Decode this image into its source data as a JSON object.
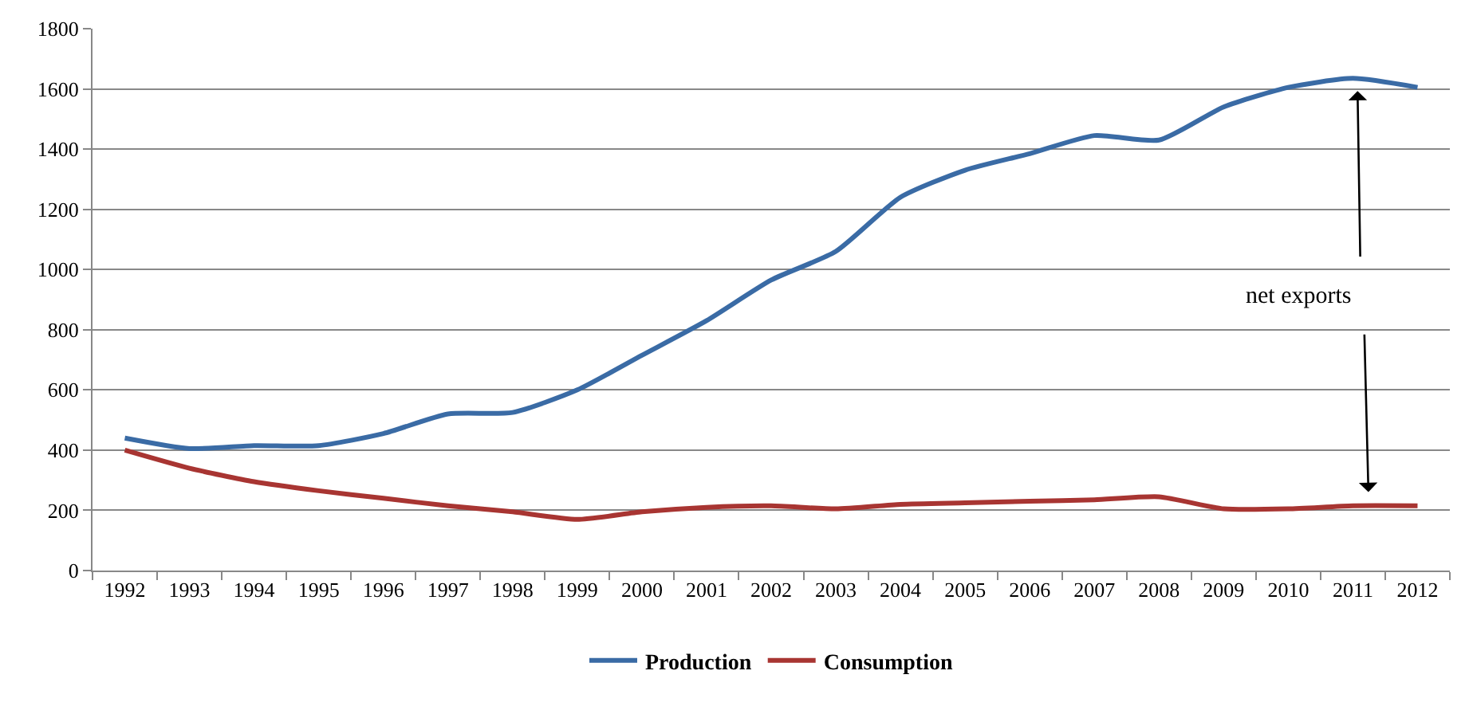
{
  "chart_data": {
    "type": "line",
    "categories": [
      "1992",
      "1993",
      "1994",
      "1995",
      "1996",
      "1997",
      "1998",
      "1999",
      "2000",
      "2001",
      "2002",
      "2003",
      "2004",
      "2005",
      "2006",
      "2007",
      "2008",
      "2009",
      "2010",
      "2011",
      "2012"
    ],
    "series": [
      {
        "name": "Production",
        "color": "#3a6ba5",
        "values": [
          440,
          405,
          415,
          415,
          455,
          520,
          525,
          600,
          715,
          830,
          965,
          1060,
          1240,
          1330,
          1385,
          1445,
          1430,
          1540,
          1605,
          1635,
          1605
        ]
      },
      {
        "name": "Consumption",
        "color": "#a83532",
        "values": [
          400,
          340,
          295,
          265,
          240,
          215,
          195,
          170,
          195,
          210,
          215,
          205,
          220,
          225,
          230,
          235,
          245,
          205,
          205,
          215,
          215
        ]
      }
    ],
    "ylim": [
      0,
      1800
    ],
    "yticks": [
      0,
      200,
      400,
      600,
      800,
      1000,
      1200,
      1400,
      1600,
      1800
    ],
    "grid": "y",
    "legend": "bottom",
    "marker": "none",
    "line_style": "solid",
    "annotations": [
      "net exports"
    ]
  }
}
